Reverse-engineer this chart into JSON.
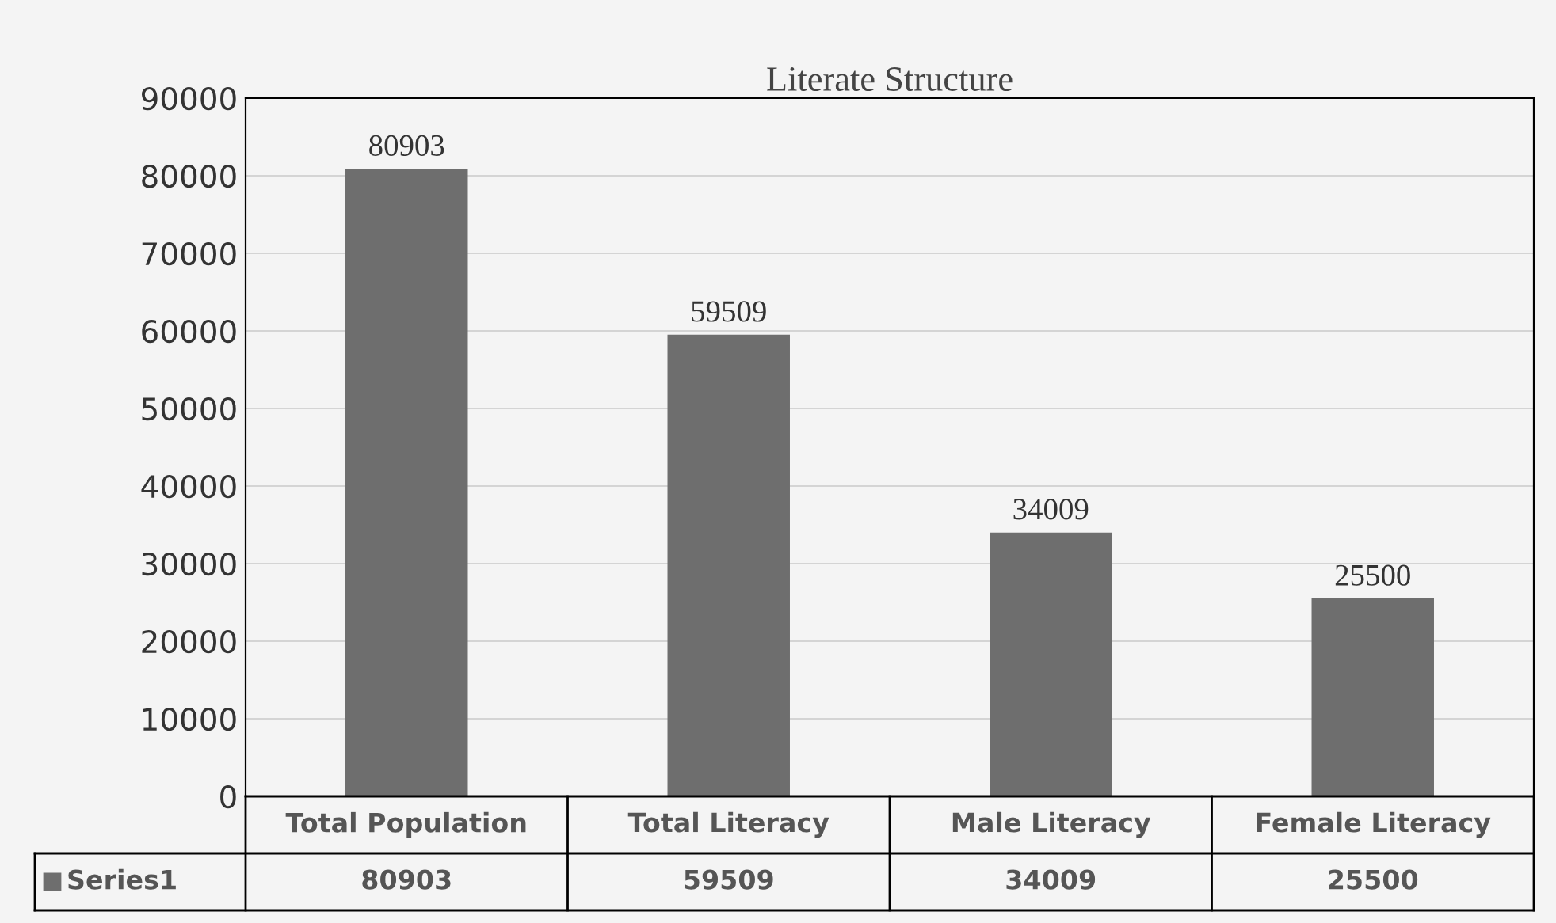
{
  "chart_data": {
    "type": "bar",
    "title": "Literate Structure",
    "categories": [
      "Total Population",
      "Total Literacy",
      "Male Literacy",
      "Female Literacy"
    ],
    "series": [
      {
        "name": "Series1",
        "color": "#6e6e6e",
        "values": [
          80903,
          59509,
          34009,
          25500
        ],
        "value_labels": [
          "80903",
          "59509",
          "34009",
          "25500"
        ]
      }
    ],
    "ylim": [
      0,
      90000
    ],
    "yticks": [
      0,
      10000,
      20000,
      30000,
      40000,
      50000,
      60000,
      70000,
      80000,
      90000
    ],
    "grid": "y",
    "legend": "bottom",
    "annotations": [
      "80903",
      "59509",
      "34009",
      "25500"
    ]
  }
}
